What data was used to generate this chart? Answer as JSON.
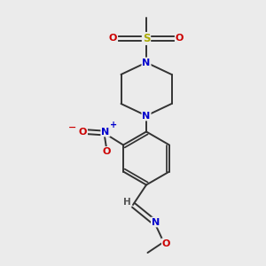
{
  "bg_color": "#ebebeb",
  "fig_size": [
    3.0,
    3.0
  ],
  "dpi": 100,
  "atom_colors": {
    "C": "#000000",
    "N": "#0000cc",
    "O": "#cc0000",
    "S": "#aaaa00",
    "H": "#555555"
  },
  "bond_color": "#333333",
  "bond_width": 1.4
}
